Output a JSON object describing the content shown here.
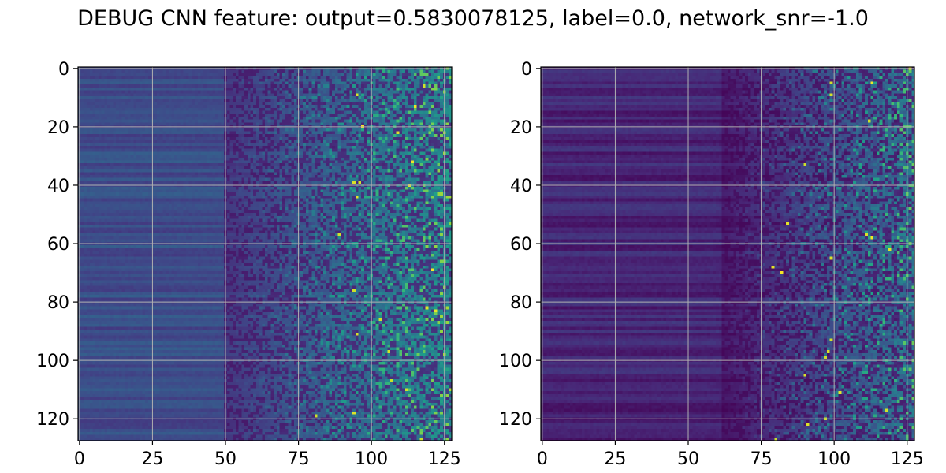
{
  "title": "DEBUG CNN feature: output=0.5830078125, label=0.0, network_snr=-1.0",
  "colormap": "viridis",
  "colors": {
    "grid": "#b0b0b0",
    "axis": "#000000"
  },
  "chart_data": [
    {
      "type": "heatmap",
      "panel": "left",
      "rows": 128,
      "cols": 128,
      "xlim": [
        0,
        127
      ],
      "ylim": [
        127,
        0
      ],
      "xticks": [
        0,
        25,
        50,
        75,
        100,
        125
      ],
      "yticks": [
        0,
        20,
        40,
        60,
        80,
        100,
        120
      ],
      "grid": true,
      "pattern": "banded low values for columns 0-50, rising noise toward column 127",
      "bright_cells": [
        [
          6,
          118
        ],
        [
          9,
          95
        ],
        [
          13,
          115
        ],
        [
          20,
          97
        ],
        [
          22,
          109
        ],
        [
          32,
          114
        ],
        [
          39,
          96
        ],
        [
          39,
          94
        ],
        [
          40,
          113
        ],
        [
          44,
          95
        ],
        [
          57,
          89
        ],
        [
          69,
          121
        ],
        [
          76,
          94
        ],
        [
          82,
          119
        ],
        [
          83,
          122
        ],
        [
          86,
          103
        ],
        [
          91,
          95
        ],
        [
          97,
          106
        ],
        [
          107,
          107
        ],
        [
          110,
          112
        ],
        [
          118,
          94
        ],
        [
          119,
          81
        ],
        [
          127,
          117
        ]
      ]
    },
    {
      "type": "heatmap",
      "panel": "right",
      "rows": 128,
      "cols": 128,
      "xlim": [
        0,
        127
      ],
      "ylim": [
        127,
        0
      ],
      "xticks": [
        0,
        25,
        50,
        75,
        100,
        125
      ],
      "yticks": [
        0,
        20,
        40,
        60,
        80,
        100,
        120
      ],
      "grid": true,
      "pattern": "dark low values for columns 0-60, rising noise toward column 127",
      "bright_cells": [
        [
          0,
          126
        ],
        [
          5,
          99
        ],
        [
          5,
          113
        ],
        [
          9,
          99
        ],
        [
          18,
          112
        ],
        [
          33,
          90
        ],
        [
          53,
          84
        ],
        [
          57,
          111
        ],
        [
          58,
          113
        ],
        [
          62,
          119
        ],
        [
          65,
          99
        ],
        [
          68,
          79
        ],
        [
          70,
          82
        ],
        [
          93,
          99
        ],
        [
          97,
          98
        ],
        [
          99,
          97
        ],
        [
          105,
          90
        ],
        [
          111,
          102
        ],
        [
          117,
          118
        ],
        [
          120,
          97
        ],
        [
          122,
          91
        ],
        [
          127,
          80
        ]
      ]
    }
  ]
}
